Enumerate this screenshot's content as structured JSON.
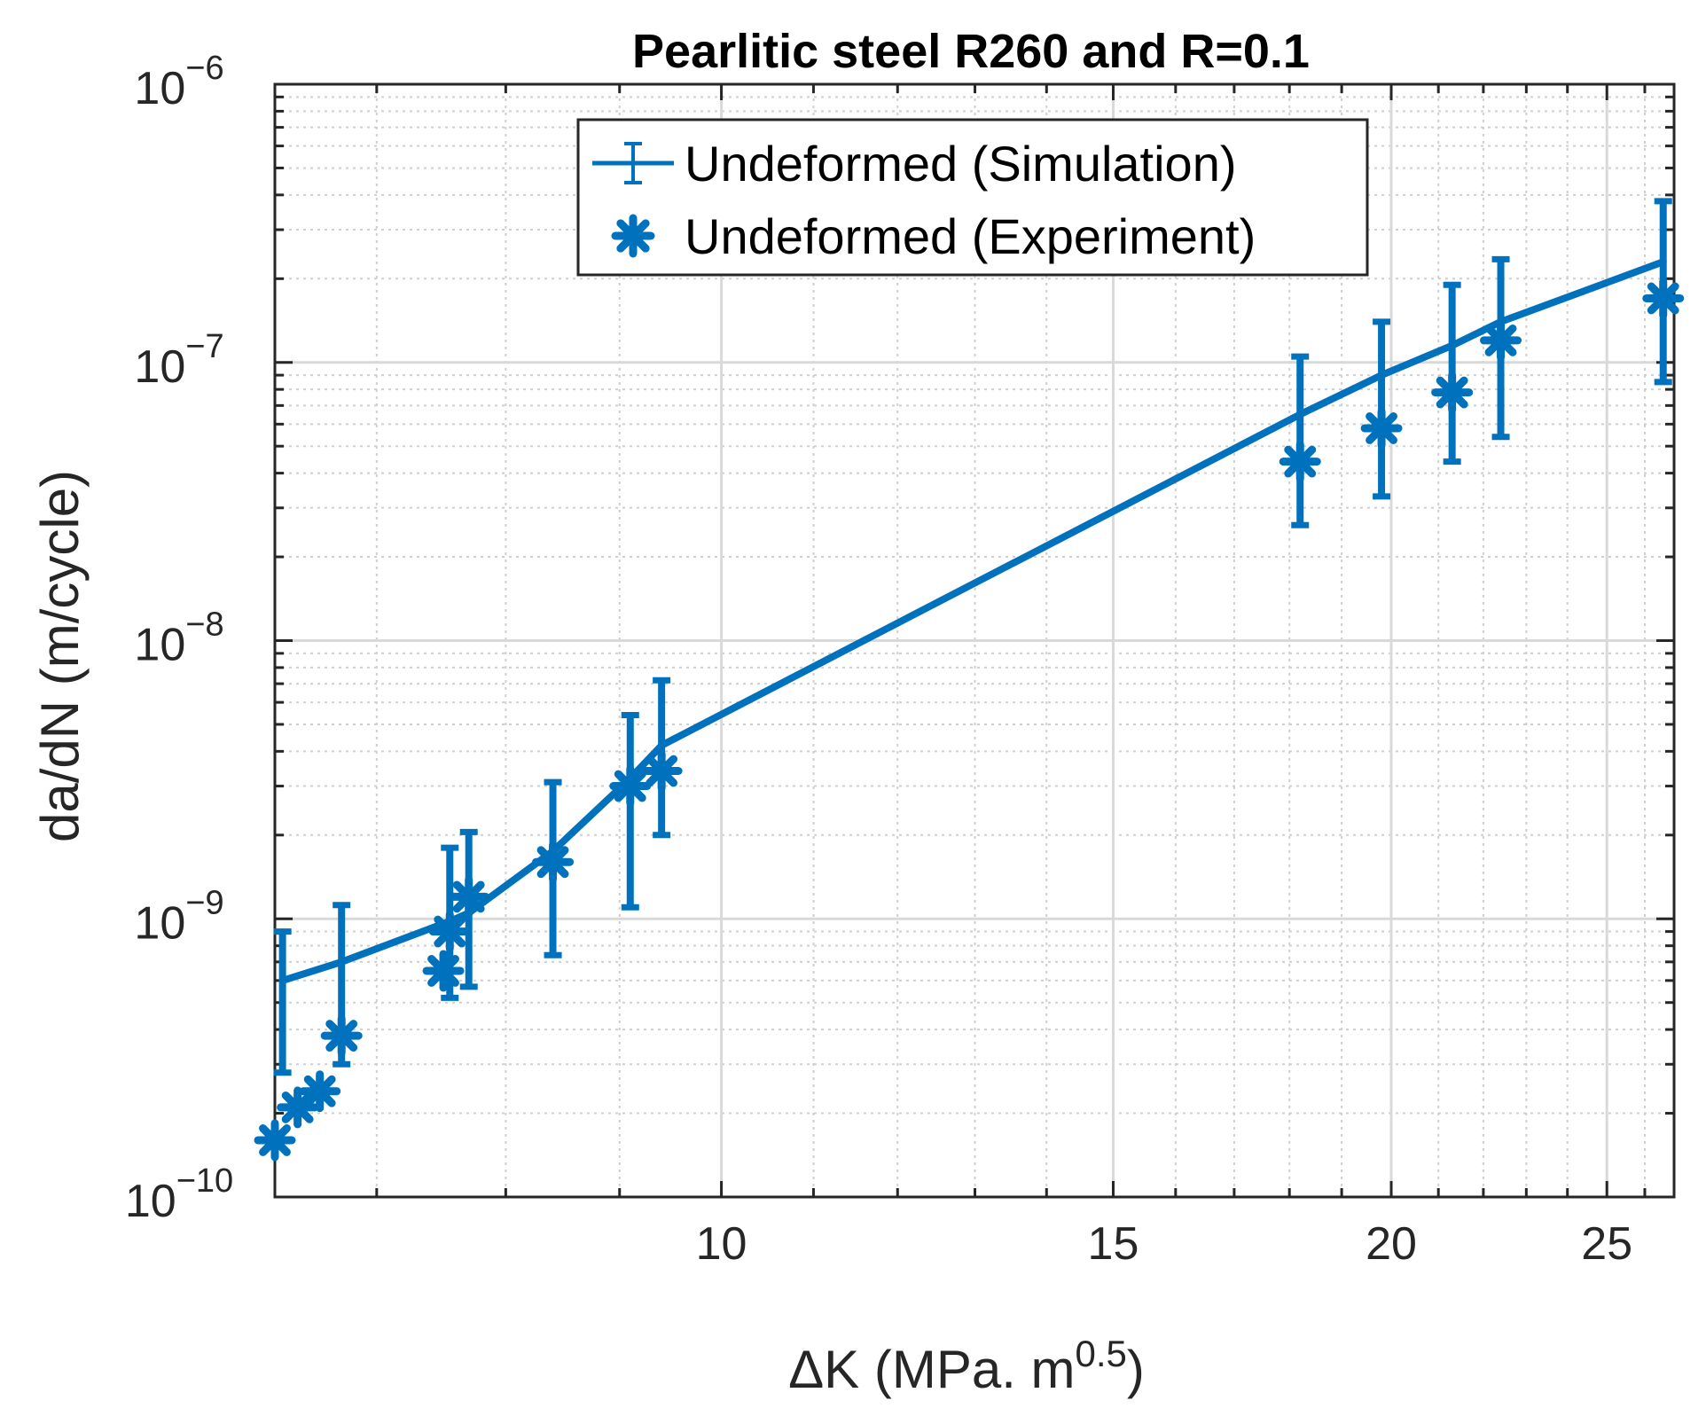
{
  "chart_data": {
    "type": "scatter",
    "title": "Pearlitic steel R260 and R=0.1",
    "xlabel": {
      "main": "ΔK (MPa. m",
      "sup": "0.5",
      "close": ")"
    },
    "ylabel": "da/dN (m/cycle)",
    "xscale": "log",
    "yscale": "log",
    "xlim": [
      6.3,
      26.8
    ],
    "ylim": [
      1e-10,
      1e-06
    ],
    "grid": true,
    "minor_grid": true,
    "legend_position": "top-center",
    "color": "#0072BD",
    "x_ticks": [
      {
        "value": 10,
        "label": "10"
      },
      {
        "value": 15,
        "label": "15"
      },
      {
        "value": 20,
        "label": "20"
      },
      {
        "value": 25,
        "label": "25"
      }
    ],
    "y_ticks": [
      {
        "value": 1e-10,
        "base": "10",
        "exp": "−10"
      },
      {
        "value": 1e-09,
        "base": "10",
        "exp": "−9"
      },
      {
        "value": 1e-08,
        "base": "10",
        "exp": "−8"
      },
      {
        "value": 1e-07,
        "base": "10",
        "exp": "−7"
      },
      {
        "value": 1e-06,
        "base": "10",
        "exp": "−6"
      }
    ],
    "series": [
      {
        "name": "Undeformed (Simulation)",
        "style": "line-errorbar",
        "x": [
          6.35,
          6.75,
          7.55,
          7.7,
          8.4,
          9.1,
          9.4,
          18.2,
          19.8,
          21.3,
          22.4,
          26.5
        ],
        "y": [
          6e-10,
          7e-10,
          9.8e-10,
          1.05e-09,
          1.75e-09,
          3.2e-09,
          4.2e-09,
          6.5e-08,
          9e-08,
          1.15e-07,
          1.4e-07,
          2.3e-07
        ],
        "y_low": [
          2.8e-10,
          3e-10,
          5.2e-10,
          5.7e-10,
          7.4e-10,
          1.1e-09,
          2e-09,
          2.6e-08,
          3.3e-08,
          4.4e-08,
          5.4e-08,
          8.5e-08
        ],
        "y_high": [
          9e-10,
          1.12e-09,
          1.8e-09,
          2.05e-09,
          3.1e-09,
          5.4e-09,
          7.2e-09,
          1.05e-07,
          1.4e-07,
          1.9e-07,
          2.35e-07,
          3.8e-07
        ]
      },
      {
        "name": "Undeformed (Experiment)",
        "style": "asterisk-marker",
        "x": [
          6.3,
          6.45,
          6.6,
          6.75,
          7.5,
          7.55,
          7.7,
          8.4,
          9.1,
          9.4,
          18.2,
          19.8,
          21.3,
          22.4,
          26.5
        ],
        "y": [
          1.6e-10,
          2.1e-10,
          2.4e-10,
          3.8e-10,
          6.5e-10,
          9e-10,
          1.2e-09,
          1.6e-09,
          3e-09,
          3.4e-09,
          4.4e-08,
          5.8e-08,
          7.8e-08,
          1.2e-07,
          1.7e-07
        ]
      }
    ]
  }
}
